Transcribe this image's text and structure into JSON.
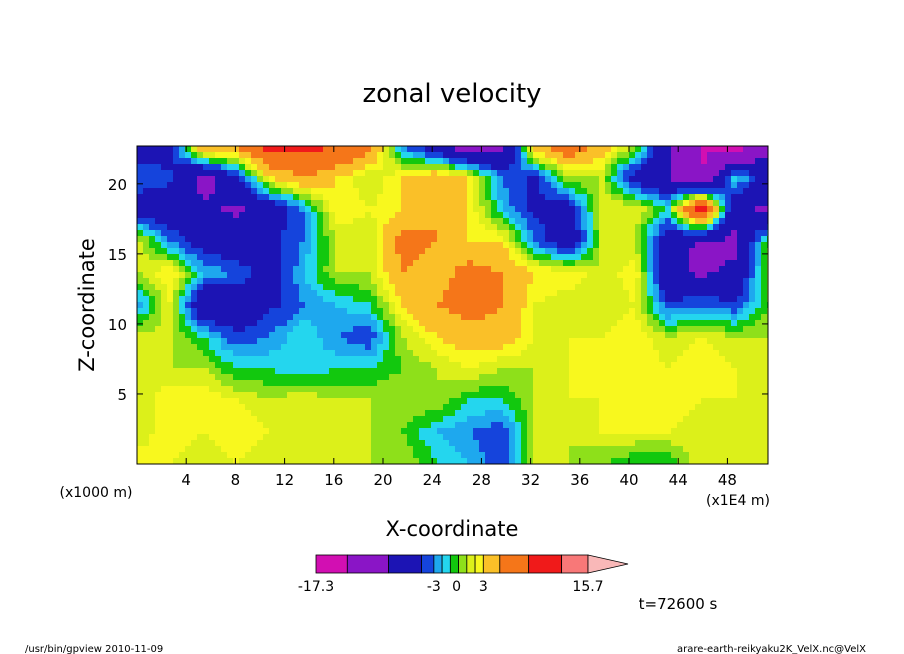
{
  "chart_data": {
    "type": "heatmap",
    "title": "zonal velocity",
    "xlabel": "X-coordinate",
    "ylabel": "Z-coordinate",
    "x_unit_left": "(x1000 m)",
    "x_unit_right": "(x1E4 m)",
    "x_ticks": [
      "4",
      "8",
      "12",
      "16",
      "20",
      "24",
      "28",
      "32",
      "36",
      "40",
      "44",
      "48"
    ],
    "y_ticks": [
      "5",
      "10",
      "15",
      "20"
    ],
    "xlim": [
      0,
      51.3
    ],
    "ylim": [
      0,
      22.7
    ],
    "colorbar": {
      "labels": [
        "-17.3",
        "-3",
        "0",
        "3",
        "15.7"
      ],
      "min": -17.3,
      "max": 15.7,
      "levels": [
        -17.3,
        -13.5,
        -8.5,
        -4.5,
        -3,
        -2,
        -1,
        0,
        1,
        2,
        3,
        5,
        8.5,
        12.5,
        15.7
      ],
      "colors": [
        "#d20fb2",
        "#8a15c6",
        "#1c14b4",
        "#1544dc",
        "#1ea8ee",
        "#24d6ee",
        "#12c80e",
        "#8ee01a",
        "#dcf01a",
        "#f8f81e",
        "#fac028",
        "#f57619",
        "#f01a1a",
        "#f87878",
        "#f9b8b8"
      ]
    },
    "cells": [
      [
        -6,
        -6,
        6,
        6,
        10,
        9,
        9,
        6,
        -3,
        -7,
        -12,
        -10,
        5,
        7,
        4,
        1,
        -8,
        -14,
        -16,
        -10
      ],
      [
        -3,
        -4,
        -10,
        -5,
        3,
        5,
        3,
        1,
        3,
        5,
        3,
        -3,
        -5,
        1,
        1,
        -6,
        -8,
        -14,
        -1,
        -6
      ],
      [
        -6,
        -7,
        -8,
        -9,
        -7,
        -3,
        3,
        2,
        3,
        5,
        3,
        -2,
        -5,
        -6,
        2,
        2,
        -1,
        12,
        -8,
        -9
      ],
      [
        2,
        -3,
        -6,
        -7,
        -5,
        -3,
        1,
        1,
        6,
        5,
        3,
        3,
        -3,
        -7,
        1,
        1,
        -7,
        -9,
        -9,
        0
      ],
      [
        1,
        3,
        -2,
        -3,
        -6,
        -2,
        1,
        1,
        5,
        4,
        6,
        5,
        3,
        3,
        1,
        3,
        -8,
        -9,
        -8,
        1
      ],
      [
        -3,
        2,
        -8,
        -7,
        -5,
        -3,
        -2,
        -1,
        3,
        5,
        6,
        5,
        2,
        1,
        1,
        2,
        -4,
        -3,
        -4,
        0
      ],
      [
        2,
        1,
        -1,
        -4,
        -3,
        -1,
        -3,
        -4,
        1,
        3,
        4,
        4,
        2,
        2,
        2,
        3,
        1,
        2,
        1,
        1
      ],
      [
        1,
        1,
        1,
        -1,
        -1,
        -2,
        -1,
        -1,
        0,
        1,
        2,
        1,
        1,
        2,
        2,
        3,
        2,
        3,
        2,
        1
      ],
      [
        1,
        3,
        3,
        2,
        1,
        2,
        1,
        1,
        1,
        1,
        -1,
        -1,
        1,
        2,
        2,
        3,
        3,
        2,
        2,
        1
      ],
      [
        1,
        3,
        2,
        3,
        2,
        2,
        1,
        1,
        0,
        -2,
        -3,
        -4,
        1,
        1,
        2,
        2,
        2,
        1,
        2,
        1
      ],
      [
        3,
        2,
        1,
        2,
        1,
        1,
        1,
        1,
        1,
        -1,
        -2,
        -4,
        1,
        1,
        0,
        -1,
        -1,
        2,
        1,
        1
      ]
    ],
    "annotations": {
      "time": "t=72600 s",
      "footer_left": "/usr/bin/gpview   2010-11-09",
      "footer_right": "arare-earth-reikyaku2K_VelX.nc@VelX"
    }
  }
}
